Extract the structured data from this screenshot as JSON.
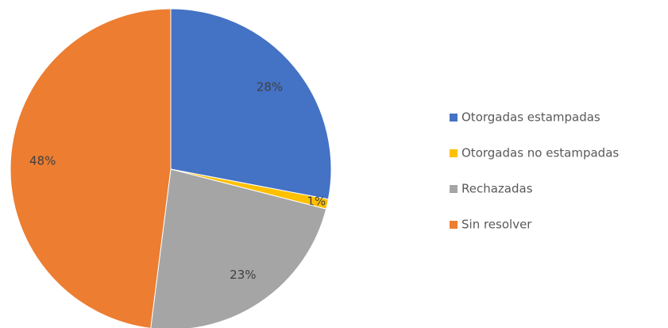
{
  "chart_data": {
    "type": "pie",
    "categories": [
      "Otorgadas estampadas",
      "Otorgadas no estampadas",
      "Rechazadas",
      "Sin resolver"
    ],
    "values": [
      28,
      1,
      23,
      48
    ],
    "value_labels": [
      "28%",
      "1%",
      "23%",
      "48%"
    ],
    "colors": [
      "#4472c4",
      "#ffc000",
      "#a5a5a5",
      "#ed7d31"
    ],
    "legend": "right"
  }
}
